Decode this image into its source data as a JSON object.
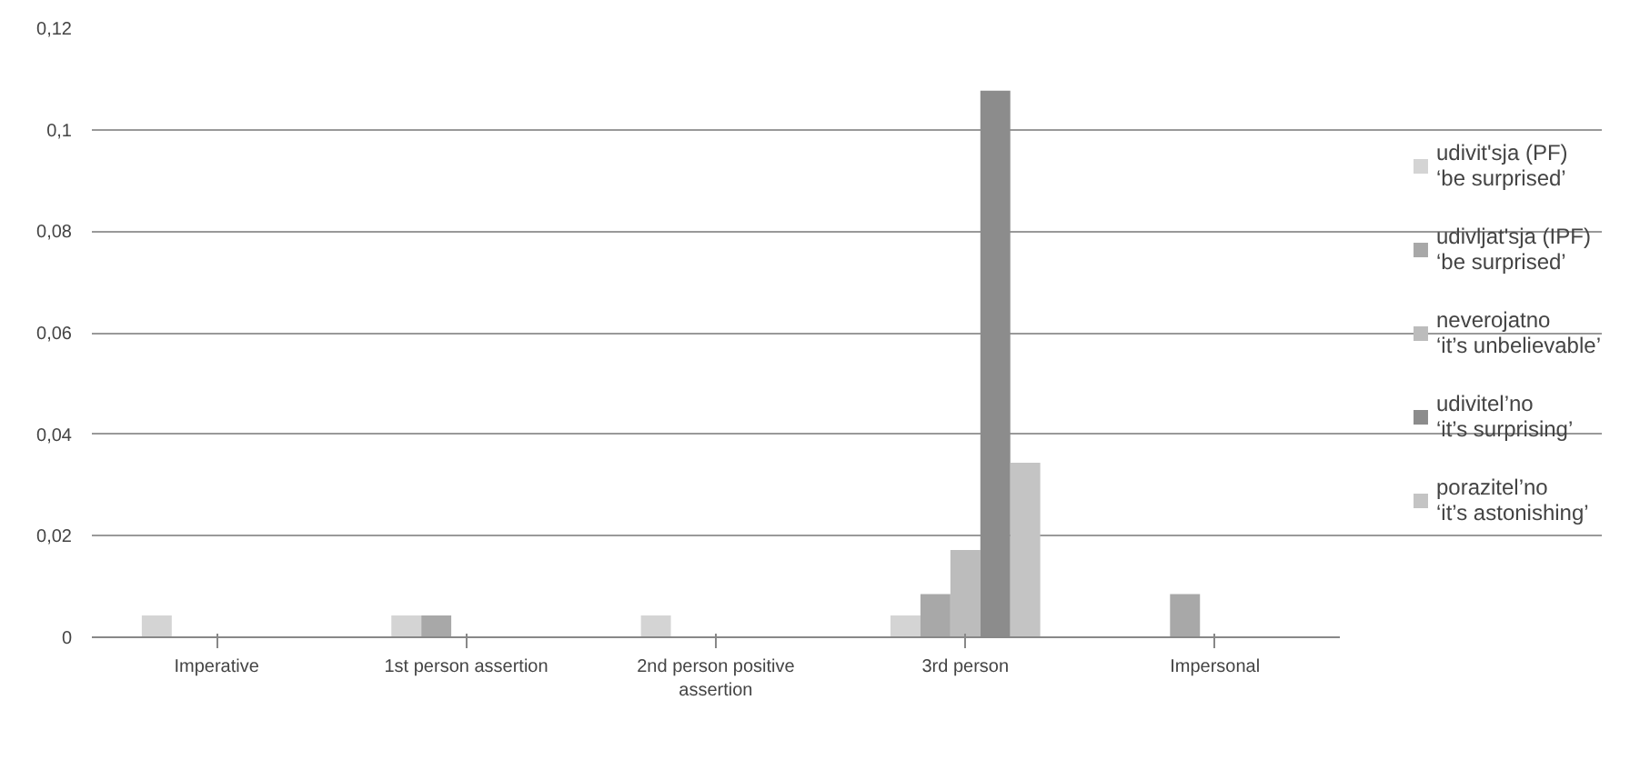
{
  "chart_data": {
    "type": "bar",
    "categories": [
      "Imperative",
      "1st person assertion",
      "2nd person positive assertion",
      "3rd person",
      "Impersonal"
    ],
    "series": [
      {
        "name": "udivit'sja (PF)\n‘be surprised’",
        "color": "#d4d4d4",
        "values": [
          0.0043,
          0.0043,
          0.0043,
          0.0043,
          0
        ]
      },
      {
        "name": "udivljat'sja (IPF)\n‘be surprised’",
        "color": "#a8a8a8",
        "values": [
          0,
          0.0043,
          0,
          0.0085,
          0.0085
        ]
      },
      {
        "name": "neverojatno\n‘it’s unbelievable’",
        "color": "#bcbcbc",
        "values": [
          0,
          0,
          0,
          0.0172,
          0
        ]
      },
      {
        "name": "udivitel’no\n‘it’s surprising’",
        "color": "#8c8c8c",
        "values": [
          0,
          0,
          0,
          0.1077,
          0
        ]
      },
      {
        "name": "porazitel’no\n‘it’s astonishing’",
        "color": "#c4c4c4",
        "values": [
          0,
          0,
          0,
          0.0344,
          0
        ]
      }
    ],
    "ylim": [
      0,
      0.12
    ],
    "yticks": [
      0,
      {
        "value": 0.02,
        "label": "0,02"
      },
      {
        "value": 0.04,
        "label": "0,04"
      },
      {
        "value": 0.06,
        "label": "0,06"
      },
      {
        "value": 0.08,
        "label": "0,08"
      },
      {
        "value": 0.1,
        "label": "0,1"
      },
      {
        "value": 0.12,
        "label": "0,12"
      }
    ],
    "grid": "y",
    "legend": "right"
  }
}
